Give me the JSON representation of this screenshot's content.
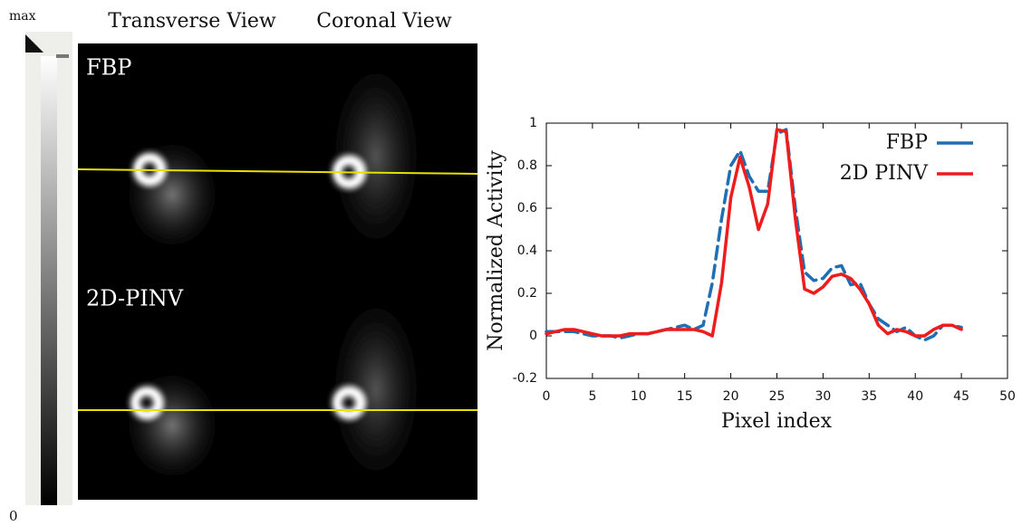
{
  "figure": {
    "colorbar_max": "max",
    "colorbar_min": "0",
    "column_labels": [
      "Transverse View",
      "Coronal View"
    ],
    "row_labels": [
      "FBP",
      "2D-PINV"
    ]
  },
  "chart_data": {
    "type": "line",
    "xlabel": "Pixel index",
    "ylabel": "Normalized Activity",
    "x": [
      0,
      1,
      2,
      3,
      4,
      5,
      6,
      7,
      8,
      9,
      10,
      11,
      12,
      13,
      14,
      15,
      16,
      17,
      18,
      19,
      20,
      21,
      22,
      23,
      24,
      25,
      26,
      27,
      28,
      29,
      30,
      31,
      32,
      33,
      34,
      35,
      36,
      37,
      38,
      39,
      40,
      41,
      42,
      43,
      44,
      45
    ],
    "series": [
      {
        "name": "FBP",
        "color": "#1f6fb4",
        "dashed": true,
        "values": [
          0.02,
          0.02,
          0.02,
          0.02,
          0.01,
          0.0,
          0.0,
          0.0,
          -0.01,
          0.0,
          0.01,
          0.01,
          0.02,
          0.03,
          0.04,
          0.05,
          0.03,
          0.05,
          0.25,
          0.55,
          0.8,
          0.87,
          0.75,
          0.68,
          0.68,
          0.95,
          0.97,
          0.6,
          0.3,
          0.26,
          0.27,
          0.32,
          0.33,
          0.24,
          0.25,
          0.15,
          0.08,
          0.05,
          0.02,
          0.04,
          0.0,
          -0.02,
          0.0,
          0.05,
          0.05,
          0.04
        ]
      },
      {
        "name": "2D PINV",
        "color": "#ee1c1c",
        "dashed": false,
        "values": [
          0.01,
          0.02,
          0.03,
          0.03,
          0.02,
          0.01,
          0.0,
          0.0,
          0.0,
          0.01,
          0.01,
          0.01,
          0.02,
          0.03,
          0.03,
          0.03,
          0.03,
          0.02,
          0.0,
          0.25,
          0.65,
          0.84,
          0.7,
          0.5,
          0.62,
          0.97,
          0.96,
          0.55,
          0.22,
          0.2,
          0.23,
          0.28,
          0.29,
          0.27,
          0.22,
          0.15,
          0.05,
          0.01,
          0.03,
          0.02,
          0.0,
          0.0,
          0.03,
          0.05,
          0.05,
          0.03
        ]
      }
    ],
    "xlim": [
      0,
      50
    ],
    "xticks": [
      0,
      5,
      10,
      15,
      20,
      25,
      30,
      35,
      40,
      45,
      50
    ],
    "ylim": [
      -0.2,
      1
    ],
    "yticks": [
      -0.2,
      0,
      0.2,
      0.4,
      0.6,
      0.8,
      1
    ],
    "legend": "upper right",
    "grid": false
  }
}
